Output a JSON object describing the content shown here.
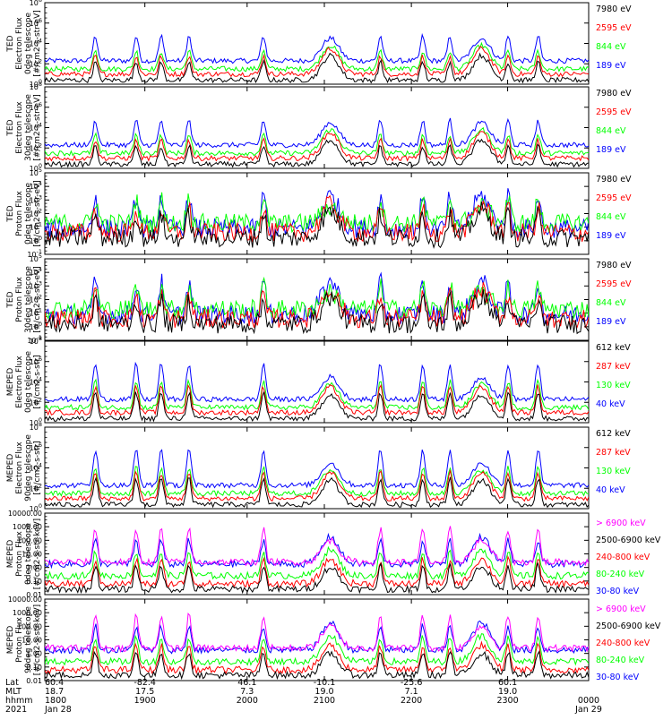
{
  "colors": {
    "black": "#000000",
    "red": "#ff0000",
    "green": "#00ff00",
    "blue": "#0000ff",
    "magenta": "#ff00ff",
    "white": "#ffffff"
  },
  "chart_data": [
    {
      "type": "line",
      "ylabel": [
        "TED",
        "Electron Flux",
        "0deg telescope",
        "[#/cm2-s-str-eV]"
      ],
      "yscale": "log",
      "ylim": [
        1,
        100000000
      ],
      "yticks": [
        "10^8",
        "10^6",
        "10^4",
        "10^2",
        "10^0"
      ],
      "legend": [
        {
          "label": "7980 eV",
          "color": "#000000"
        },
        {
          "label": "2595 eV",
          "color": "#ff0000"
        },
        {
          "label": "844 eV",
          "color": "#00ff00"
        },
        {
          "label": "189 eV",
          "color": "#0000ff"
        }
      ]
    },
    {
      "type": "line",
      "ylabel": [
        "TED",
        "Electron Flux",
        "30deg telescope",
        "[#/cm2-s-str-eV]"
      ],
      "yscale": "log",
      "ylim": [
        1,
        100000000
      ],
      "yticks": [
        "10^8",
        "10^6",
        "10^4",
        "10^2",
        "10^0"
      ],
      "legend": [
        {
          "label": "7980 eV",
          "color": "#000000"
        },
        {
          "label": "2595 eV",
          "color": "#ff0000"
        },
        {
          "label": "844 eV",
          "color": "#00ff00"
        },
        {
          "label": "189 eV",
          "color": "#0000ff"
        }
      ]
    },
    {
      "type": "line",
      "ylabel": [
        "TED",
        "Proton Flux",
        "0deg telescope",
        "[#/cm2-s-str-eV]"
      ],
      "yscale": "log",
      "ylim": [
        0.1,
        100000
      ],
      "yticks": [
        "10^5",
        "10^4",
        "10^3",
        "10^2",
        "10^1",
        "10^0",
        "10^-1"
      ],
      "legend": [
        {
          "label": "7980 eV",
          "color": "#000000"
        },
        {
          "label": "2595 eV",
          "color": "#ff0000"
        },
        {
          "label": "844 eV",
          "color": "#00ff00"
        },
        {
          "label": "189 eV",
          "color": "#0000ff"
        }
      ]
    },
    {
      "type": "line",
      "ylabel": [
        "TED",
        "Proton Flux",
        "30deg telescope",
        "[#/cm2-s-str-eV]"
      ],
      "yscale": "log",
      "ylim": [
        0.1,
        100000
      ],
      "yticks": [
        "10^5",
        "10^4",
        "10^3",
        "10^2",
        "10^1",
        "10^0",
        "10^-1"
      ],
      "legend": [
        {
          "label": "7980 eV",
          "color": "#000000"
        },
        {
          "label": "2595 eV",
          "color": "#ff0000"
        },
        {
          "label": "844 eV",
          "color": "#00ff00"
        },
        {
          "label": "189 eV",
          "color": "#0000ff"
        }
      ]
    },
    {
      "type": "line",
      "ylabel": [
        "MEPED",
        "Electron Flux",
        "0deg telescope",
        "[#/cm2-s-str]"
      ],
      "yscale": "log",
      "ylim": [
        1,
        100000000
      ],
      "yticks": [
        "10^8",
        "10^6",
        "10^4",
        "10^2",
        "10^0"
      ],
      "legend": [
        {
          "label": "612 keV",
          "color": "#000000"
        },
        {
          "label": "287 keV",
          "color": "#ff0000"
        },
        {
          "label": "130 keV",
          "color": "#00ff00"
        },
        {
          "label": "40 keV",
          "color": "#0000ff"
        }
      ]
    },
    {
      "type": "line",
      "ylabel": [
        "MEPED",
        "Electron Flux",
        "90deg telescope",
        "[#/cm2-s-str]"
      ],
      "yscale": "log",
      "ylim": [
        1,
        100000000
      ],
      "yticks": [
        "10^8",
        "10^6",
        "10^4",
        "10^2",
        "10^0"
      ],
      "legend": [
        {
          "label": "612 keV",
          "color": "#000000"
        },
        {
          "label": "287 keV",
          "color": "#ff0000"
        },
        {
          "label": "130 keV",
          "color": "#00ff00"
        },
        {
          "label": "40 keV",
          "color": "#0000ff"
        }
      ]
    },
    {
      "type": "line",
      "ylabel": [
        "MEPED",
        "Proton Flux",
        "0deg telescope",
        "[#/cm2-s-str-keV]"
      ],
      "yscale": "log",
      "ylim": [
        0.01,
        10000
      ],
      "yticks": [
        "10000.00",
        "1000.00",
        "100.00",
        "10.00",
        "1.00",
        "0.10",
        "0.01"
      ],
      "legend": [
        {
          "label": "> 6900 keV",
          "color": "#ff00ff"
        },
        {
          "label": "2500-6900 keV",
          "color": "#000000"
        },
        {
          "label": "240-800 keV",
          "color": "#ff0000"
        },
        {
          "label": "80-240 keV",
          "color": "#00ff00"
        },
        {
          "label": "30-80 keV",
          "color": "#0000ff"
        }
      ]
    },
    {
      "type": "line",
      "ylabel": [
        "MEPED",
        "Proton Flux",
        "90deg telescope",
        "[#/cm2-s-str-keV]"
      ],
      "yscale": "log",
      "ylim": [
        0.01,
        10000
      ],
      "yticks": [
        "10000.00",
        "1000.00",
        "100.00",
        "10.00",
        "1.00",
        "0.10",
        "0.01"
      ],
      "legend": [
        {
          "label": "> 6900 keV",
          "color": "#ff00ff"
        },
        {
          "label": "2500-6900 keV",
          "color": "#000000"
        },
        {
          "label": "240-800 keV",
          "color": "#ff0000"
        },
        {
          "label": "80-240 keV",
          "color": "#00ff00"
        },
        {
          "label": "30-80 keV",
          "color": "#0000ff"
        }
      ]
    }
  ],
  "xaxis": {
    "row_labels": [
      "Lat",
      "MLT",
      "hhmm",
      "2021"
    ],
    "ticks": [
      {
        "lat": "60.4",
        "mlt": "18.7",
        "hhmm": "1800",
        "date": "Jan 28"
      },
      {
        "lat": "-82.4",
        "mlt": "17.5",
        "hhmm": "1900",
        "date": ""
      },
      {
        "lat": "46.1",
        "mlt": "7.3",
        "hhmm": "2000",
        "date": ""
      },
      {
        "lat": "-10.1",
        "mlt": "19.0",
        "hhmm": "2100",
        "date": ""
      },
      {
        "lat": "-25.6",
        "mlt": "7.1",
        "hhmm": "2200",
        "date": ""
      },
      {
        "lat": "60.1",
        "mlt": "19.0",
        "hhmm": "2300",
        "date": ""
      },
      {
        "lat": "",
        "mlt": "",
        "hhmm": "0000",
        "date": "Jan 29"
      }
    ]
  }
}
